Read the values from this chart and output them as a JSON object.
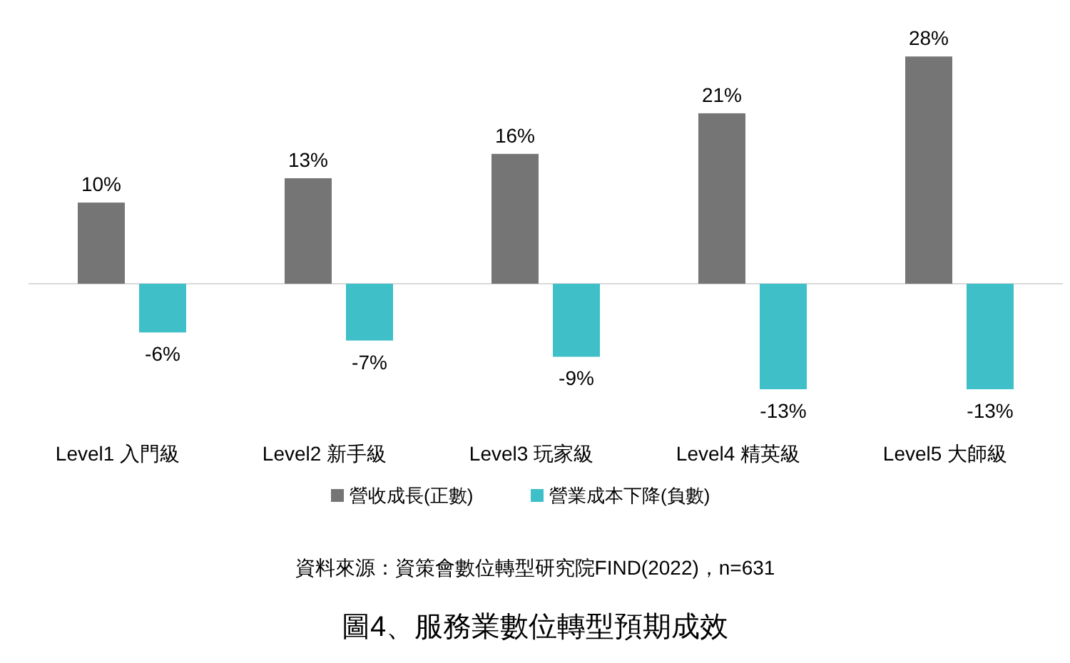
{
  "chart_data": {
    "type": "bar",
    "title": "圖4、服務業數位轉型預期成效",
    "annotations": [
      "資料來源：資策會數位轉型研究院FIND(2022)，n=631"
    ],
    "categories": [
      "Level1 入門級",
      "Level2 新手級",
      "Level3 玩家級",
      "Level4 精英級",
      "Level5 大師級"
    ],
    "series": [
      {
        "name": "營收成長(正數)",
        "color": "#757575",
        "values": [
          10,
          13,
          16,
          21,
          28
        ],
        "value_labels": [
          "10%",
          "13%",
          "16%",
          "21%",
          "28%"
        ]
      },
      {
        "name": "營業成本下降(負數)",
        "color": "#3fbfc8",
        "values": [
          -6,
          -7,
          -9,
          -13,
          -13
        ],
        "value_labels": [
          "-6%",
          "-7%",
          "-9%",
          "-13%",
          "-13%"
        ]
      }
    ],
    "legend": "bottom"
  }
}
